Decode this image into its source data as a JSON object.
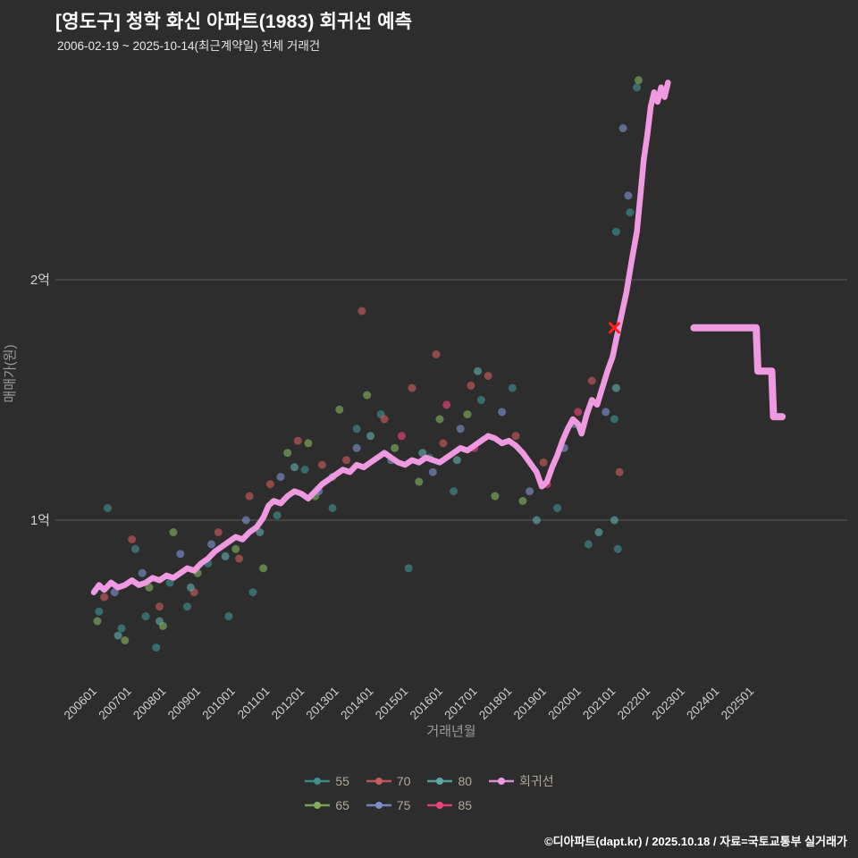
{
  "chart_data": {
    "type": "scatter",
    "title": "[영도구] 청학 화신 아파트(1983) 회귀선 예측",
    "subtitle": "2006-02-19 ~ 2025-10-14(최근계약일) 전체 거래건",
    "xlabel": "거래년월",
    "ylabel": "매매가(원)",
    "unit": "억원",
    "grid": "horizontal-only",
    "legend_position": "bottom",
    "xlim": [
      2004.9,
      2027.8
    ],
    "ylim": [
      0.34,
      2.95
    ],
    "x_tick_labels": [
      "200601",
      "200701",
      "200801",
      "200901",
      "201001",
      "201101",
      "201201",
      "201301",
      "201401",
      "201501",
      "201601",
      "201701",
      "201801",
      "201901",
      "202001",
      "202101",
      "202201",
      "202301",
      "202401",
      "202501"
    ],
    "y_ticks": [
      {
        "label": "1억",
        "value": 1.0
      },
      {
        "label": "2억",
        "value": 2.0
      }
    ],
    "series": [
      {
        "name": "55",
        "color": "#3f8f8f",
        "points": [
          [
            2006.15,
            0.62
          ],
          [
            2006.4,
            1.05
          ],
          [
            2006.8,
            0.55
          ],
          [
            2007.2,
            0.88
          ],
          [
            2007.5,
            0.6
          ],
          [
            2007.8,
            0.47
          ],
          [
            2008.2,
            0.74
          ],
          [
            2008.7,
            0.64
          ],
          [
            2009.3,
            0.82
          ],
          [
            2009.9,
            0.6
          ],
          [
            2010.6,
            0.7
          ],
          [
            2011.3,
            1.02
          ],
          [
            2012.1,
            1.21
          ],
          [
            2012.9,
            1.05
          ],
          [
            2013.6,
            1.38
          ],
          [
            2014.3,
            1.44
          ],
          [
            2015.1,
            0.8
          ],
          [
            2015.7,
            1.26
          ],
          [
            2016.4,
            1.12
          ],
          [
            2017.2,
            1.5
          ],
          [
            2018.1,
            1.55
          ],
          [
            2019.4,
            1.05
          ],
          [
            2020.3,
            0.9
          ],
          [
            2021.05,
            1.42
          ],
          [
            2021.1,
            2.2
          ],
          [
            2021.15,
            0.88
          ],
          [
            2021.5,
            2.28
          ],
          [
            2021.7,
            2.8
          ]
        ]
      },
      {
        "name": "65",
        "color": "#7fae5a",
        "points": [
          [
            2006.1,
            0.58
          ],
          [
            2006.9,
            0.5
          ],
          [
            2007.6,
            0.72
          ],
          [
            2008.0,
            0.56
          ],
          [
            2008.3,
            0.95
          ],
          [
            2009.0,
            0.78
          ],
          [
            2010.1,
            0.88
          ],
          [
            2010.9,
            0.8
          ],
          [
            2011.6,
            1.28
          ],
          [
            2012.2,
            1.32
          ],
          [
            2012.4,
            1.1
          ],
          [
            2013.1,
            1.46
          ],
          [
            2013.9,
            1.52
          ],
          [
            2014.7,
            1.3
          ],
          [
            2015.4,
            1.16
          ],
          [
            2016.0,
            1.42
          ],
          [
            2016.8,
            1.44
          ],
          [
            2017.6,
            1.1
          ],
          [
            2018.4,
            1.08
          ],
          [
            2021.75,
            2.83
          ]
        ]
      },
      {
        "name": "70",
        "color": "#c65b5b",
        "points": [
          [
            2006.3,
            0.68
          ],
          [
            2007.1,
            0.92
          ],
          [
            2007.9,
            0.64
          ],
          [
            2008.9,
            0.7
          ],
          [
            2009.6,
            0.95
          ],
          [
            2010.2,
            0.84
          ],
          [
            2010.5,
            1.1
          ],
          [
            2011.1,
            1.15
          ],
          [
            2011.9,
            1.33
          ],
          [
            2012.6,
            1.23
          ],
          [
            2013.3,
            1.25
          ],
          [
            2013.75,
            1.87
          ],
          [
            2014.4,
            1.42
          ],
          [
            2015.2,
            1.55
          ],
          [
            2015.9,
            1.69
          ],
          [
            2016.1,
            1.32
          ],
          [
            2016.9,
            1.56
          ],
          [
            2017.4,
            1.6
          ],
          [
            2018.2,
            1.35
          ],
          [
            2019.0,
            1.24
          ],
          [
            2020.4,
            1.58
          ],
          [
            2021.2,
            1.2
          ]
        ]
      },
      {
        "name": "75",
        "color": "#7b8fc7",
        "points": [
          [
            2006.6,
            0.7
          ],
          [
            2007.4,
            0.78
          ],
          [
            2008.5,
            0.86
          ],
          [
            2009.4,
            0.9
          ],
          [
            2010.4,
            1.0
          ],
          [
            2011.4,
            1.18
          ],
          [
            2012.5,
            1.12
          ],
          [
            2013.6,
            1.3
          ],
          [
            2014.6,
            1.25
          ],
          [
            2015.8,
            1.2
          ],
          [
            2016.6,
            1.38
          ],
          [
            2017.8,
            1.45
          ],
          [
            2018.6,
            1.12
          ],
          [
            2019.6,
            1.3
          ],
          [
            2020.8,
            1.45
          ],
          [
            2021.3,
            2.63
          ],
          [
            2021.45,
            2.35
          ]
        ]
      },
      {
        "name": "80",
        "color": "#5fa8a8",
        "points": [
          [
            2006.7,
            0.52
          ],
          [
            2007.9,
            0.58
          ],
          [
            2008.8,
            0.72
          ],
          [
            2009.8,
            0.85
          ],
          [
            2010.8,
            0.95
          ],
          [
            2011.8,
            1.22
          ],
          [
            2012.9,
            1.18
          ],
          [
            2014.0,
            1.35
          ],
          [
            2015.5,
            1.28
          ],
          [
            2016.5,
            1.25
          ],
          [
            2017.1,
            1.62
          ],
          [
            2018.8,
            1.0
          ],
          [
            2019.9,
            1.4
          ],
          [
            2020.6,
            0.95
          ],
          [
            2021.05,
            1.0
          ],
          [
            2021.1,
            1.55
          ]
        ]
      },
      {
        "name": "85",
        "color": "#e8447a",
        "points": [
          [
            2014.9,
            1.35
          ],
          [
            2016.2,
            1.48
          ],
          [
            2017.0,
            1.3
          ],
          [
            2019.1,
            1.15
          ],
          [
            2020.0,
            1.45
          ]
        ]
      }
    ],
    "regression": {
      "name": "회귀선",
      "color": "#ee99e0",
      "points": [
        [
          2006.0,
          0.7
        ],
        [
          2006.15,
          0.73
        ],
        [
          2006.3,
          0.71
        ],
        [
          2006.5,
          0.74
        ],
        [
          2006.7,
          0.72
        ],
        [
          2006.9,
          0.73
        ],
        [
          2007.1,
          0.75
        ],
        [
          2007.3,
          0.73
        ],
        [
          2007.5,
          0.74
        ],
        [
          2007.7,
          0.76
        ],
        [
          2007.9,
          0.75
        ],
        [
          2008.1,
          0.77
        ],
        [
          2008.3,
          0.76
        ],
        [
          2008.5,
          0.78
        ],
        [
          2008.7,
          0.8
        ],
        [
          2008.9,
          0.79
        ],
        [
          2009.1,
          0.82
        ],
        [
          2009.3,
          0.84
        ],
        [
          2009.5,
          0.87
        ],
        [
          2009.7,
          0.89
        ],
        [
          2009.9,
          0.91
        ],
        [
          2010.1,
          0.93
        ],
        [
          2010.3,
          0.92
        ],
        [
          2010.5,
          0.95
        ],
        [
          2010.7,
          0.97
        ],
        [
          2010.9,
          1.01
        ],
        [
          2011.05,
          1.06
        ],
        [
          2011.2,
          1.08
        ],
        [
          2011.4,
          1.07
        ],
        [
          2011.6,
          1.1
        ],
        [
          2011.8,
          1.12
        ],
        [
          2012.0,
          1.11
        ],
        [
          2012.2,
          1.09
        ],
        [
          2012.4,
          1.12
        ],
        [
          2012.6,
          1.15
        ],
        [
          2012.8,
          1.17
        ],
        [
          2013.0,
          1.19
        ],
        [
          2013.2,
          1.21
        ],
        [
          2013.4,
          1.2
        ],
        [
          2013.6,
          1.23
        ],
        [
          2013.8,
          1.22
        ],
        [
          2014.0,
          1.24
        ],
        [
          2014.2,
          1.26
        ],
        [
          2014.4,
          1.28
        ],
        [
          2014.6,
          1.26
        ],
        [
          2014.8,
          1.24
        ],
        [
          2015.0,
          1.23
        ],
        [
          2015.2,
          1.25
        ],
        [
          2015.4,
          1.24
        ],
        [
          2015.6,
          1.26
        ],
        [
          2015.8,
          1.25
        ],
        [
          2016.0,
          1.24
        ],
        [
          2016.2,
          1.26
        ],
        [
          2016.4,
          1.28
        ],
        [
          2016.6,
          1.3
        ],
        [
          2016.8,
          1.29
        ],
        [
          2017.0,
          1.31
        ],
        [
          2017.2,
          1.33
        ],
        [
          2017.4,
          1.35
        ],
        [
          2017.6,
          1.34
        ],
        [
          2017.8,
          1.32
        ],
        [
          2018.0,
          1.33
        ],
        [
          2018.2,
          1.31
        ],
        [
          2018.4,
          1.28
        ],
        [
          2018.6,
          1.24
        ],
        [
          2018.8,
          1.2
        ],
        [
          2018.95,
          1.14
        ],
        [
          2019.1,
          1.16
        ],
        [
          2019.25,
          1.22
        ],
        [
          2019.4,
          1.27
        ],
        [
          2019.55,
          1.33
        ],
        [
          2019.7,
          1.38
        ],
        [
          2019.85,
          1.42
        ],
        [
          2020.0,
          1.4
        ],
        [
          2020.1,
          1.36
        ],
        [
          2020.25,
          1.44
        ],
        [
          2020.4,
          1.5
        ],
        [
          2020.55,
          1.48
        ],
        [
          2020.7,
          1.55
        ],
        [
          2020.85,
          1.62
        ],
        [
          2021.0,
          1.68
        ],
        [
          2021.1,
          1.75
        ],
        [
          2021.25,
          1.85
        ],
        [
          2021.4,
          1.95
        ],
        [
          2021.55,
          2.08
        ],
        [
          2021.7,
          2.2
        ],
        [
          2021.8,
          2.35
        ],
        [
          2021.9,
          2.5
        ],
        [
          2022.0,
          2.6
        ],
        [
          2022.1,
          2.72
        ],
        [
          2022.2,
          2.78
        ],
        [
          2022.3,
          2.74
        ],
        [
          2022.4,
          2.8
        ],
        [
          2022.5,
          2.76
        ],
        [
          2022.6,
          2.82
        ]
      ]
    },
    "forecast": {
      "name": "회귀선 예측",
      "color": "#ee99e0",
      "points": [
        [
          2023.35,
          1.8
        ],
        [
          2025.15,
          1.8
        ],
        [
          2025.2,
          1.62
        ],
        [
          2025.6,
          1.62
        ],
        [
          2025.65,
          1.43
        ],
        [
          2025.9,
          1.43
        ]
      ]
    },
    "highlight_marker": {
      "symbol": "x",
      "color": "#ff1f1f",
      "x": 2021.05,
      "y": 1.8
    }
  },
  "legend": {
    "rows": [
      [
        {
          "label": "55",
          "color": "#3f8f8f"
        },
        {
          "label": "70",
          "color": "#c65b5b"
        },
        {
          "label": "80",
          "color": "#5fa8a8"
        },
        {
          "label": "회귀선",
          "color": "#ee99e0"
        }
      ],
      [
        {
          "label": "65",
          "color": "#7fae5a"
        },
        {
          "label": "75",
          "color": "#7b8fc7"
        },
        {
          "label": "85",
          "color": "#e8447a"
        }
      ]
    ]
  },
  "footer": {
    "text": "©디아파트(dapt.kr) / 2025.10.18 / 자료=국토교통부 실거래가"
  }
}
